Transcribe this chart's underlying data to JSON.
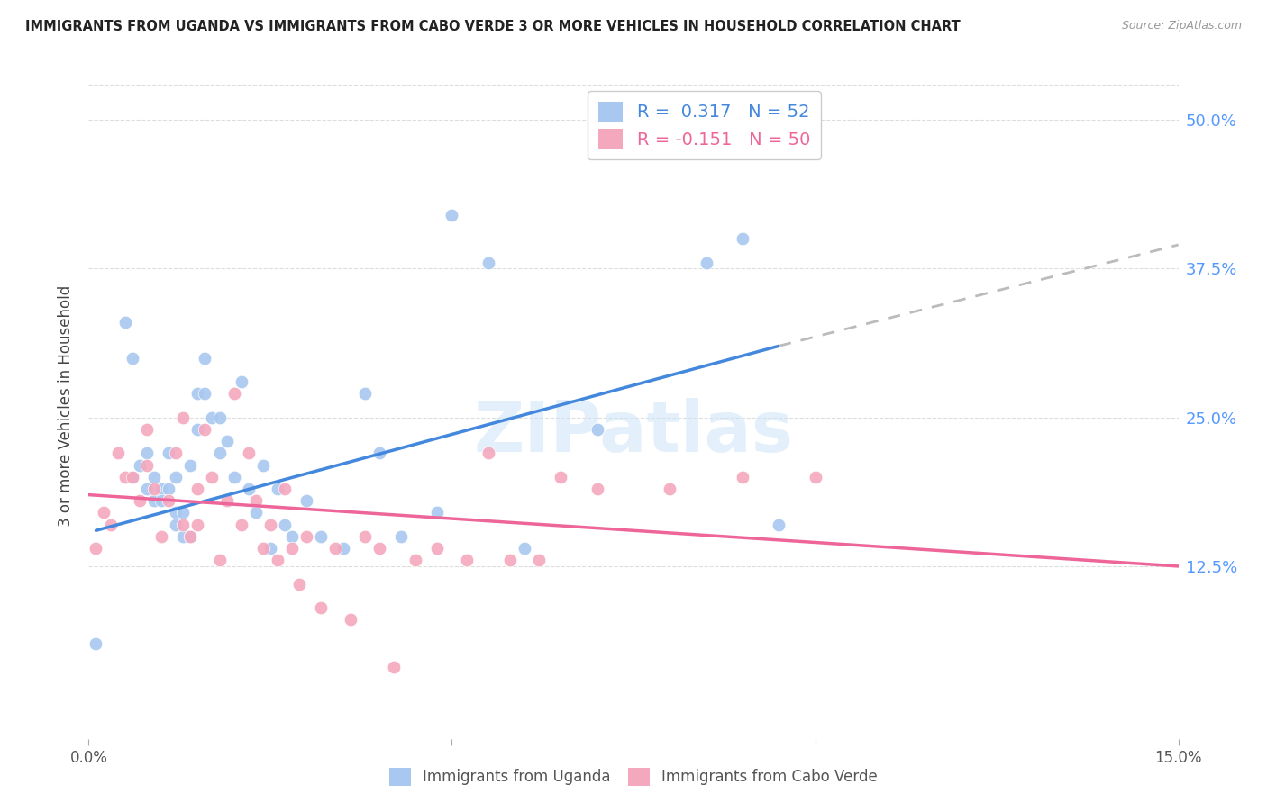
{
  "title": "IMMIGRANTS FROM UGANDA VS IMMIGRANTS FROM CABO VERDE 3 OR MORE VEHICLES IN HOUSEHOLD CORRELATION CHART",
  "source": "Source: ZipAtlas.com",
  "ylabel": "3 or more Vehicles in Household",
  "ytick_labels": [
    "12.5%",
    "25.0%",
    "37.5%",
    "50.0%"
  ],
  "ytick_values": [
    0.125,
    0.25,
    0.375,
    0.5
  ],
  "xmin": 0.0,
  "xmax": 0.15,
  "ymin": -0.02,
  "ymax": 0.54,
  "color_uganda": "#a8c8f0",
  "color_verde": "#f4a8be",
  "line_color_uganda": "#4488dd",
  "line_color_verde": "#ee6699",
  "line_color_extrapolated": "#bbbbbb",
  "watermark": "ZIPatlas",
  "background_color": "#ffffff",
  "grid_color": "#dddddd",
  "uganda_x": [
    0.001,
    0.005,
    0.006,
    0.006,
    0.007,
    0.008,
    0.008,
    0.009,
    0.009,
    0.01,
    0.01,
    0.011,
    0.011,
    0.012,
    0.012,
    0.012,
    0.013,
    0.013,
    0.014,
    0.014,
    0.015,
    0.015,
    0.016,
    0.016,
    0.017,
    0.018,
    0.018,
    0.019,
    0.02,
    0.021,
    0.022,
    0.023,
    0.024,
    0.025,
    0.026,
    0.027,
    0.028,
    0.03,
    0.032,
    0.035,
    0.038,
    0.04,
    0.043,
    0.048,
    0.05,
    0.055,
    0.06,
    0.07,
    0.08,
    0.085,
    0.09,
    0.095
  ],
  "uganda_y": [
    0.06,
    0.33,
    0.3,
    0.2,
    0.21,
    0.19,
    0.22,
    0.18,
    0.2,
    0.19,
    0.18,
    0.19,
    0.22,
    0.17,
    0.16,
    0.2,
    0.15,
    0.17,
    0.15,
    0.21,
    0.24,
    0.27,
    0.3,
    0.27,
    0.25,
    0.25,
    0.22,
    0.23,
    0.2,
    0.28,
    0.19,
    0.17,
    0.21,
    0.14,
    0.19,
    0.16,
    0.15,
    0.18,
    0.15,
    0.14,
    0.27,
    0.22,
    0.15,
    0.17,
    0.42,
    0.38,
    0.14,
    0.24,
    0.5,
    0.38,
    0.4,
    0.16
  ],
  "verde_x": [
    0.001,
    0.002,
    0.003,
    0.004,
    0.005,
    0.006,
    0.007,
    0.008,
    0.008,
    0.009,
    0.01,
    0.011,
    0.012,
    0.013,
    0.013,
    0.014,
    0.015,
    0.015,
    0.016,
    0.017,
    0.018,
    0.019,
    0.02,
    0.021,
    0.022,
    0.023,
    0.024,
    0.025,
    0.026,
    0.027,
    0.028,
    0.029,
    0.03,
    0.032,
    0.034,
    0.036,
    0.038,
    0.04,
    0.042,
    0.045,
    0.048,
    0.052,
    0.055,
    0.058,
    0.062,
    0.065,
    0.07,
    0.08,
    0.09,
    0.1
  ],
  "verde_y": [
    0.14,
    0.17,
    0.16,
    0.22,
    0.2,
    0.2,
    0.18,
    0.21,
    0.24,
    0.19,
    0.15,
    0.18,
    0.22,
    0.25,
    0.16,
    0.15,
    0.19,
    0.16,
    0.24,
    0.2,
    0.13,
    0.18,
    0.27,
    0.16,
    0.22,
    0.18,
    0.14,
    0.16,
    0.13,
    0.19,
    0.14,
    0.11,
    0.15,
    0.09,
    0.14,
    0.08,
    0.15,
    0.14,
    0.04,
    0.13,
    0.14,
    0.13,
    0.22,
    0.13,
    0.13,
    0.2,
    0.19,
    0.19,
    0.2,
    0.2
  ],
  "uganda_line_x": [
    0.001,
    0.095
  ],
  "uganda_line_y": [
    0.155,
    0.31
  ],
  "verde_line_x": [
    0.0,
    0.15
  ],
  "verde_line_y": [
    0.185,
    0.125
  ],
  "extrap_line_x": [
    0.095,
    0.15
  ],
  "extrap_line_y": [
    0.31,
    0.395
  ]
}
